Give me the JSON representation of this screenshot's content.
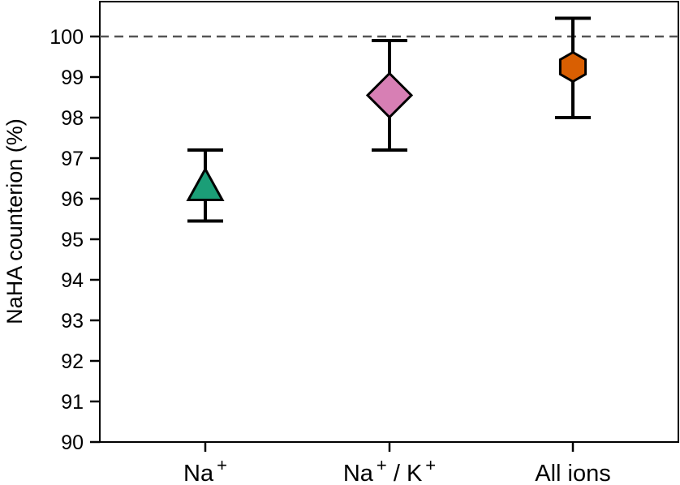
{
  "chart_data": {
    "type": "scatter",
    "title": "",
    "xlabel": "",
    "ylabel": "NaHA counterion (%)",
    "ylim": [
      90,
      100.9
    ],
    "yticks": [
      90,
      91,
      92,
      93,
      94,
      95,
      96,
      97,
      98,
      99,
      100
    ],
    "grid": false,
    "legend": null,
    "reference_line": {
      "y": 100,
      "style": "dashed",
      "color": "#555555"
    },
    "categories": [
      {
        "label_main": "Na",
        "label_sup": "+",
        "full": "Na+"
      },
      {
        "label_main": "Na",
        "label_sup": "+",
        "label_mid": " / K",
        "label_sup2": "+",
        "full": "Na+ / K+"
      },
      {
        "label_main": "All ions",
        "full": "All ions"
      }
    ],
    "points": [
      {
        "category": "Na+",
        "value": 96.25,
        "err_low": 95.45,
        "err_high": 97.2,
        "marker": "triangle",
        "color": "#1b9e77"
      },
      {
        "category": "Na+ / K+",
        "value": 98.55,
        "err_low": 97.2,
        "err_high": 99.9,
        "marker": "diamond",
        "color": "#d77fb4"
      },
      {
        "category": "All ions",
        "value": 99.25,
        "err_low": 98.0,
        "err_high": 100.45,
        "marker": "hexagon",
        "color": "#d95f02"
      }
    ]
  }
}
